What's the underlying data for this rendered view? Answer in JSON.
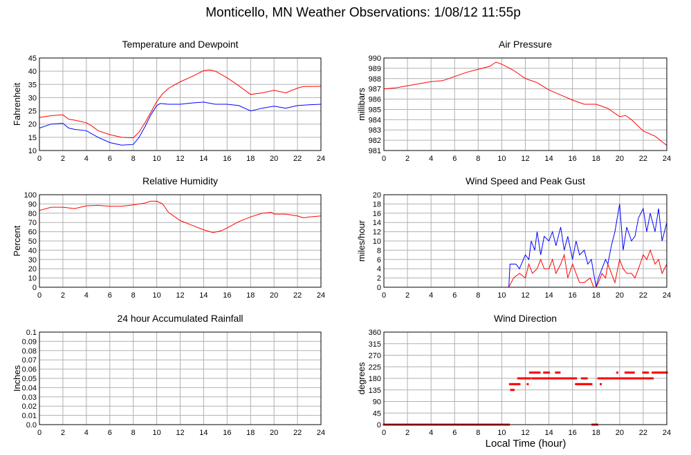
{
  "page": {
    "title": "Monticello, MN Weather Observations: 1/08/12 11:55p",
    "xaxis_caption": "Local Time (hour)"
  },
  "chart_data": [
    {
      "type": "line",
      "title": "Temperature and Dewpoint",
      "xlabel": "",
      "ylabel": "Fahrenheit",
      "xlim": [
        0,
        24
      ],
      "ylim": [
        10,
        45
      ],
      "xticks": [
        0,
        2,
        4,
        6,
        8,
        10,
        12,
        14,
        16,
        18,
        20,
        22,
        24
      ],
      "yticks": [
        10,
        15,
        20,
        25,
        30,
        35,
        40,
        45
      ],
      "grid": true,
      "series": [
        {
          "color": "#ff0000",
          "x": [
            0,
            1,
            2,
            2.5,
            3,
            4,
            4.5,
            5,
            6,
            7,
            8,
            8.5,
            9,
            9.5,
            10,
            10.5,
            11,
            12,
            13,
            14,
            14.5,
            15,
            16,
            17,
            18,
            19,
            20,
            21,
            22,
            22.5,
            23,
            24
          ],
          "y": [
            22.5,
            23.2,
            23.5,
            21.8,
            21.5,
            20.5,
            19.2,
            17.5,
            16,
            15,
            14.8,
            17,
            20.5,
            24.5,
            28.5,
            31.5,
            33.5,
            36,
            38,
            40.2,
            40.5,
            40,
            37.5,
            34.5,
            31.2,
            31.8,
            32.8,
            31.8,
            33.6,
            34.2,
            34.2,
            34.3
          ]
        },
        {
          "color": "#0000ff",
          "x": [
            0,
            1,
            2,
            2.5,
            3,
            4,
            5,
            6,
            7,
            8,
            8.5,
            9,
            9.5,
            10,
            10.3,
            11,
            12,
            13,
            14,
            15,
            16,
            17,
            18,
            19,
            20,
            21,
            22,
            23,
            24
          ],
          "y": [
            18.5,
            20,
            20.3,
            18.5,
            18,
            17.5,
            15,
            13,
            12,
            12.3,
            15,
            19,
            23.5,
            27,
            27.8,
            27.5,
            27.5,
            28,
            28.3,
            27.5,
            27.5,
            27,
            25,
            26,
            26.8,
            26,
            27,
            27.3,
            27.5
          ]
        }
      ]
    },
    {
      "type": "line",
      "title": "Air Pressure",
      "xlabel": "",
      "ylabel": "millibars",
      "xlim": [
        0,
        24
      ],
      "ylim": [
        981,
        990
      ],
      "xticks": [
        0,
        2,
        4,
        6,
        8,
        10,
        12,
        14,
        16,
        18,
        20,
        22,
        24
      ],
      "yticks": [
        981,
        982,
        983,
        984,
        985,
        986,
        987,
        988,
        989,
        990
      ],
      "grid": true,
      "series": [
        {
          "color": "#ff0000",
          "x": [
            0,
            1,
            2,
            3,
            4,
            5,
            6,
            7,
            8,
            9,
            9.5,
            10,
            11,
            12,
            13,
            14,
            15,
            16,
            17,
            18,
            19,
            20,
            20.5,
            21,
            22,
            23,
            24
          ],
          "y": [
            987,
            987.1,
            987.3,
            987.5,
            987.7,
            987.8,
            988.2,
            988.6,
            988.9,
            989.2,
            989.6,
            989.4,
            988.8,
            988,
            987.6,
            986.9,
            986.4,
            985.9,
            985.5,
            985.5,
            985.1,
            984.3,
            984.4,
            984,
            982.9,
            982.4,
            981.5
          ]
        }
      ]
    },
    {
      "type": "line",
      "title": "Relative Humidity",
      "xlabel": "",
      "ylabel": "Percent",
      "xlim": [
        0,
        24
      ],
      "ylim": [
        0,
        100
      ],
      "xticks": [
        0,
        2,
        4,
        6,
        8,
        10,
        12,
        14,
        16,
        18,
        20,
        22,
        24
      ],
      "yticks": [
        0,
        10,
        20,
        30,
        40,
        50,
        60,
        70,
        80,
        90,
        100
      ],
      "grid": true,
      "series": [
        {
          "color": "#ff0000",
          "x": [
            0,
            1,
            2,
            3,
            4,
            5,
            6,
            7,
            8,
            9,
            9.5,
            10,
            10.5,
            11,
            12,
            13,
            14,
            14.8,
            15.5,
            16,
            17,
            18,
            19,
            19.8,
            20,
            21,
            22,
            22.5,
            23,
            24
          ],
          "y": [
            83,
            86.5,
            86.5,
            85,
            88,
            88.5,
            87.5,
            87.5,
            89,
            91,
            93,
            93,
            90,
            81,
            72,
            67,
            62,
            59,
            61,
            64,
            71,
            76,
            80,
            81,
            79,
            79,
            77,
            75,
            76,
            77
          ]
        }
      ]
    },
    {
      "type": "line",
      "title": "Wind Speed and Peak Gust",
      "xlabel": "",
      "ylabel": "miles/hour",
      "xlim": [
        0,
        24
      ],
      "ylim": [
        0,
        20
      ],
      "xticks": [
        0,
        2,
        4,
        6,
        8,
        10,
        12,
        14,
        16,
        18,
        20,
        22,
        24
      ],
      "yticks": [
        0,
        2,
        4,
        6,
        8,
        10,
        12,
        14,
        16,
        18,
        20
      ],
      "grid": true,
      "series": [
        {
          "color": "#0000ff",
          "x": [
            0,
            10.6,
            10.7,
            11.2,
            11.5,
            12,
            12.3,
            12.5,
            12.8,
            13,
            13.3,
            13.6,
            14,
            14.3,
            14.6,
            15,
            15.3,
            15.6,
            16,
            16.3,
            16.6,
            17,
            17.3,
            17.6,
            17.8,
            18,
            18.2,
            18.5,
            18.8,
            19,
            19.3,
            19.6,
            20,
            20.3,
            20.6,
            21,
            21.3,
            21.6,
            22,
            22.3,
            22.6,
            23,
            23.3,
            23.6,
            24
          ],
          "y": [
            0,
            0,
            5,
            5,
            4,
            7,
            6,
            10,
            8,
            12,
            7,
            11,
            10,
            12,
            9,
            13,
            8,
            11,
            6,
            10,
            7,
            8,
            5,
            6,
            3,
            0,
            2,
            4,
            6,
            5,
            9,
            12,
            18,
            8,
            13,
            10,
            11,
            15,
            17,
            12,
            16,
            12,
            17,
            10,
            14
          ]
        },
        {
          "color": "#ff0000",
          "x": [
            0,
            10.6,
            10.8,
            11,
            11.5,
            12,
            12.3,
            12.6,
            13,
            13.3,
            13.6,
            14,
            14.3,
            14.6,
            15,
            15.3,
            15.6,
            16,
            16.3,
            16.6,
            17,
            17.5,
            17.8,
            18,
            18.2,
            18.5,
            18.8,
            19,
            19.3,
            19.6,
            20,
            20.3,
            20.6,
            21,
            21.3,
            21.6,
            22,
            22.3,
            22.6,
            23,
            23.3,
            23.6,
            24
          ],
          "y": [
            0,
            0,
            1,
            2,
            3,
            2,
            5,
            3,
            4,
            6,
            4,
            4,
            6,
            3,
            5,
            7,
            2,
            5,
            3,
            1,
            1,
            2,
            0,
            0,
            1,
            3,
            2,
            5,
            3,
            1,
            6,
            4,
            3,
            3,
            2,
            4,
            7,
            6,
            8,
            5,
            6,
            3,
            5
          ]
        }
      ]
    },
    {
      "type": "line",
      "title": "24 hour Accumulated Rainfall",
      "xlabel": "",
      "ylabel": "Inches",
      "xlim": [
        0,
        24
      ],
      "ylim": [
        0,
        0.1
      ],
      "xticks": [
        0,
        2,
        4,
        6,
        8,
        10,
        12,
        14,
        16,
        18,
        20,
        22,
        24
      ],
      "yticks": [
        "0.0",
        "0.01",
        "0.02",
        "0.03",
        "0.04",
        "0.05",
        "0.06",
        "0.07",
        "0.08",
        "0.09",
        "0.1"
      ],
      "grid": true,
      "series": [
        {
          "color": "#ff00ff",
          "x": [
            0,
            24
          ],
          "y": [
            0,
            0
          ]
        }
      ]
    },
    {
      "type": "scatter",
      "title": "Wind Direction",
      "xlabel": "Local Time (hour)",
      "ylabel": "degrees",
      "xlim": [
        0,
        24
      ],
      "ylim": [
        0,
        360
      ],
      "xticks": [
        0,
        2,
        4,
        6,
        8,
        10,
        12,
        14,
        16,
        18,
        20,
        22,
        24
      ],
      "yticks": [
        0,
        45,
        90,
        135,
        180,
        225,
        270,
        315,
        360
      ],
      "grid": true,
      "series": [
        {
          "color": "#ff0000",
          "segments": [
            {
              "x0": 0,
              "x1": 10.6,
              "y": 0
            },
            {
              "x0": 10.7,
              "x1": 11.5,
              "y": 157.5
            },
            {
              "x0": 10.8,
              "x1": 11.0,
              "y": 135
            },
            {
              "x0": 11.5,
              "x1": 12.4,
              "y": 180
            },
            {
              "x0": 12.4,
              "x1": 13.2,
              "y": 202.5
            },
            {
              "x0": 12.6,
              "x1": 15.4,
              "y": 180
            },
            {
              "x0": 13.6,
              "x1": 14.0,
              "y": 202.5
            },
            {
              "x0": 14.6,
              "x1": 14.9,
              "y": 202.5
            },
            {
              "x0": 15.4,
              "x1": 16.3,
              "y": 180
            },
            {
              "x0": 16.3,
              "x1": 17.6,
              "y": 157.5
            },
            {
              "x0": 16.8,
              "x1": 17.2,
              "y": 180
            },
            {
              "x0": 17.7,
              "x1": 18.1,
              "y": 0
            },
            {
              "x0": 18.2,
              "x1": 21.8,
              "y": 180
            },
            {
              "x0": 20.5,
              "x1": 21.2,
              "y": 202.5
            },
            {
              "x0": 21.8,
              "x1": 22.8,
              "y": 180
            },
            {
              "x0": 22.0,
              "x1": 22.4,
              "y": 202.5
            },
            {
              "x0": 22.8,
              "x1": 24,
              "y": 202.5
            }
          ],
          "points": [
            [
              12.2,
              157.5
            ],
            [
              18.4,
              157.5
            ],
            [
              11.4,
              180
            ],
            [
              19.8,
              202.5
            ]
          ]
        }
      ]
    }
  ]
}
